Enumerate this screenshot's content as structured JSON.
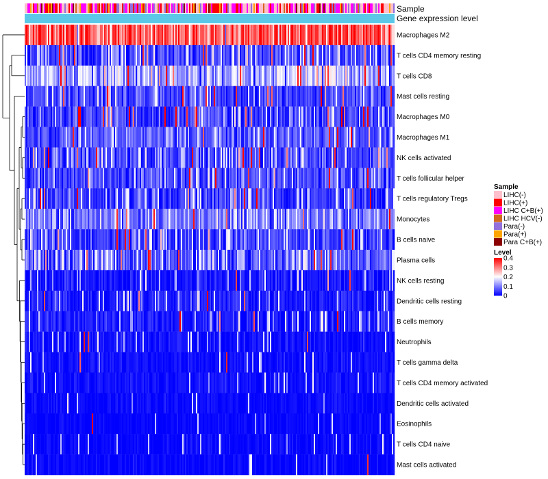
{
  "chart_data": {
    "type": "heatmap",
    "title": "",
    "annotation_tracks": [
      {
        "name": "Sample"
      },
      {
        "name": "Gene expression level"
      }
    ],
    "rows": [
      {
        "name": "Macrophages M2",
        "mean": 0.33,
        "sd": 0.06,
        "spike": 0.03,
        "pale": 0.06
      },
      {
        "name": "T cells CD4 memory resting",
        "mean": 0.055,
        "sd": 0.035,
        "spike": 0.04,
        "pale": 0.18
      },
      {
        "name": "T cells CD8",
        "mean": 0.12,
        "sd": 0.05,
        "spike": 0.06,
        "pale": 0.3
      },
      {
        "name": "Mast cells resting",
        "mean": 0.05,
        "sd": 0.03,
        "spike": 0.04,
        "pale": 0.12
      },
      {
        "name": "Macrophages M0",
        "mean": 0.045,
        "sd": 0.035,
        "spike": 0.07,
        "pale": 0.1
      },
      {
        "name": "Macrophages M1",
        "mean": 0.06,
        "sd": 0.03,
        "spike": 0.03,
        "pale": 0.15
      },
      {
        "name": "NK cells activated",
        "mean": 0.05,
        "sd": 0.03,
        "spike": 0.03,
        "pale": 0.15
      },
      {
        "name": "T cells follicular helper",
        "mean": 0.05,
        "sd": 0.03,
        "spike": 0.025,
        "pale": 0.15
      },
      {
        "name": "T cells regulatory  Tregs",
        "mean": 0.045,
        "sd": 0.03,
        "spike": 0.025,
        "pale": 0.15
      },
      {
        "name": "Monocytes",
        "mean": 0.08,
        "sd": 0.035,
        "spike": 0.02,
        "pale": 0.25
      },
      {
        "name": "B cells naive",
        "mean": 0.045,
        "sd": 0.03,
        "spike": 0.02,
        "pale": 0.14
      },
      {
        "name": "Plasma cells",
        "mean": 0.06,
        "sd": 0.035,
        "spike": 0.03,
        "pale": 0.22
      },
      {
        "name": "NK cells resting",
        "mean": 0.015,
        "sd": 0.02,
        "spike": 0.01,
        "pale": 0.08
      },
      {
        "name": "Dendritic cells resting",
        "mean": 0.02,
        "sd": 0.02,
        "spike": 0.01,
        "pale": 0.1
      },
      {
        "name": "B cells memory",
        "mean": 0.02,
        "sd": 0.02,
        "spike": 0.008,
        "pale": 0.1
      },
      {
        "name": "Neutrophils",
        "mean": 0.012,
        "sd": 0.015,
        "spike": 0.005,
        "pale": 0.06
      },
      {
        "name": "T cells gamma delta",
        "mean": 0.01,
        "sd": 0.012,
        "spike": 0.004,
        "pale": 0.05
      },
      {
        "name": "T cells CD4 memory activated",
        "mean": 0.01,
        "sd": 0.012,
        "spike": 0.004,
        "pale": 0.05
      },
      {
        "name": "Dendritic cells activated",
        "mean": 0.006,
        "sd": 0.01,
        "spike": 0.003,
        "pale": 0.03
      },
      {
        "name": "Eosinophils",
        "mean": 0.004,
        "sd": 0.008,
        "spike": 0.002,
        "pale": 0.02
      },
      {
        "name": "T cells CD4 naive",
        "mean": 0.006,
        "sd": 0.01,
        "spike": 0.003,
        "pale": 0.04
      },
      {
        "name": "Mast cells activated",
        "mean": 0.005,
        "sd": 0.01,
        "spike": 0.003,
        "pale": 0.03
      }
    ],
    "columns_count": 270,
    "value_range": [
      0,
      0.4
    ],
    "color_scale": [
      {
        "value": 0,
        "color": "#0000ff"
      },
      {
        "value": 0.2,
        "color": "#ffffff"
      },
      {
        "value": 0.4,
        "color": "#ff0000"
      }
    ],
    "legends": {
      "sample": {
        "title": "Sample",
        "items": [
          {
            "label": "LIHC(-)",
            "color": "#ffc0cb"
          },
          {
            "label": "LIHC(+)",
            "color": "#ff0000"
          },
          {
            "label": "LIHC C+B(+)",
            "color": "#ff00ff"
          },
          {
            "label": "LIHC HCV(-)",
            "color": "#d2691e"
          },
          {
            "label": "Para(-)",
            "color": "#9370db"
          },
          {
            "label": "Para(+)",
            "color": "#ffa500"
          },
          {
            "label": "Para C+B(+)",
            "color": "#8b0000"
          }
        ]
      },
      "level": {
        "title": "Level",
        "ticks": [
          {
            "value": 0.4,
            "label": "0.4"
          },
          {
            "value": 0.3,
            "label": "0.3"
          },
          {
            "value": 0.2,
            "label": "0.2"
          },
          {
            "value": 0.1,
            "label": "0.1"
          },
          {
            "value": 0,
            "label": "0"
          }
        ]
      }
    },
    "gene_expression_color": "#5bc8e8"
  }
}
